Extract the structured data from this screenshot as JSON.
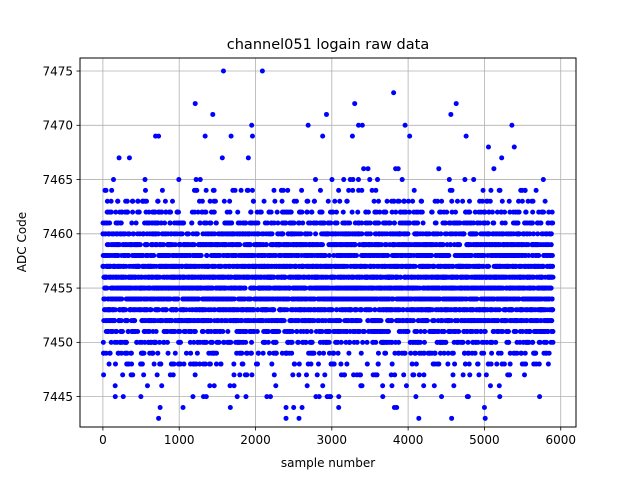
{
  "chart_data": {
    "type": "scatter",
    "title": "channel051 logain raw data",
    "xlabel": "sample number",
    "ylabel": "ADC Code",
    "xlim": [
      -300,
      6200
    ],
    "ylim": [
      7442.2,
      7476.2
    ],
    "xticks": [
      0,
      1000,
      2000,
      3000,
      4000,
      5000,
      6000
    ],
    "yticks": [
      7445,
      7450,
      7455,
      7460,
      7465,
      7470,
      7475
    ],
    "grid": true,
    "marker_color": "#0000ff",
    "n_samples": 5900,
    "distribution": {
      "mean": 7455.5,
      "sd": 3.6
    },
    "outliers": [
      {
        "x": 1580,
        "y": 7475
      },
      {
        "x": 2090,
        "y": 7475
      },
      {
        "x": 3810,
        "y": 7473
      },
      {
        "x": 1210,
        "y": 7472
      },
      {
        "x": 3300,
        "y": 7472
      },
      {
        "x": 4630,
        "y": 7472
      },
      {
        "x": 1440,
        "y": 7471
      },
      {
        "x": 2930,
        "y": 7471
      },
      {
        "x": 4560,
        "y": 7471
      },
      {
        "x": 1950,
        "y": 7470
      },
      {
        "x": 2690,
        "y": 7470
      },
      {
        "x": 3350,
        "y": 7470
      },
      {
        "x": 3400,
        "y": 7470
      },
      {
        "x": 3960,
        "y": 7470
      },
      {
        "x": 5360,
        "y": 7470
      },
      {
        "x": 690,
        "y": 7469
      },
      {
        "x": 730,
        "y": 7469
      },
      {
        "x": 1340,
        "y": 7469
      },
      {
        "x": 1680,
        "y": 7469
      },
      {
        "x": 1960,
        "y": 7469
      },
      {
        "x": 2880,
        "y": 7469
      },
      {
        "x": 3270,
        "y": 7469
      },
      {
        "x": 4020,
        "y": 7469
      },
      {
        "x": 4760,
        "y": 7469
      },
      {
        "x": 730,
        "y": 7443
      },
      {
        "x": 2400,
        "y": 7443
      },
      {
        "x": 2570,
        "y": 7443
      },
      {
        "x": 4140,
        "y": 7443
      },
      {
        "x": 4570,
        "y": 7443
      },
      {
        "x": 5010,
        "y": 7443
      },
      {
        "x": 750,
        "y": 7444
      },
      {
        "x": 1050,
        "y": 7444
      },
      {
        "x": 1670,
        "y": 7444
      },
      {
        "x": 2400,
        "y": 7444
      },
      {
        "x": 2500,
        "y": 7444
      },
      {
        "x": 2610,
        "y": 7444
      },
      {
        "x": 3090,
        "y": 7444
      },
      {
        "x": 3820,
        "y": 7444
      },
      {
        "x": 3850,
        "y": 7444
      },
      {
        "x": 5000,
        "y": 7444
      }
    ]
  }
}
